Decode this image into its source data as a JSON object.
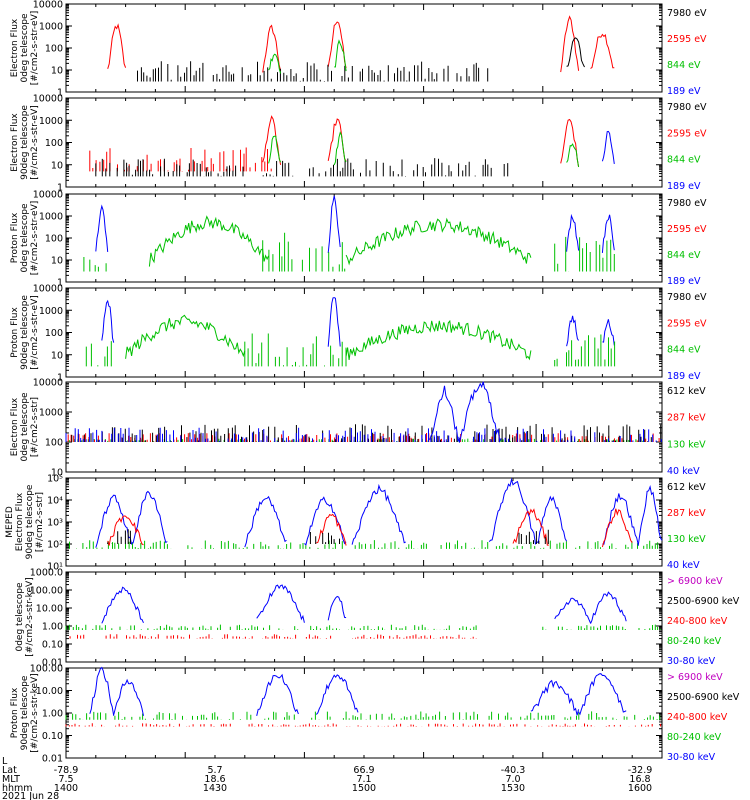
{
  "figure": {
    "date_label": "2021 Jun 28",
    "footer_rows": [
      {
        "label": "L",
        "values": [
          "",
          "",
          "",
          "",
          "",
          ""
        ]
      },
      {
        "label": "Lat",
        "values": [
          "-78.9",
          "5.7",
          "66.9",
          "-40.3",
          "-32.9",
          ""
        ]
      },
      {
        "label": "MLT",
        "values": [
          "7.5",
          "18.6",
          "7.1",
          "7.0",
          "16.8",
          ""
        ]
      },
      {
        "label": "hhmm",
        "values": [
          "1400",
          "1430",
          "1500",
          "1530",
          "1600",
          ""
        ]
      }
    ]
  },
  "chart_data": [
    {
      "type": "line",
      "name": "panel1",
      "ylabel_lines": [
        "Electron Flux",
        "0deg telescope",
        "[#/cm2-s-str-eV]"
      ],
      "yscale": "log",
      "ylim": [
        1,
        10000
      ],
      "ytick_labels": [
        "1",
        "10",
        "100",
        "1000",
        "10000"
      ],
      "legend": [
        {
          "name": "7980 eV",
          "color": "#000000"
        },
        {
          "name": "2595 eV",
          "color": "#ff0000"
        },
        {
          "name": "844 eV",
          "color": "#00c000"
        },
        {
          "name": "189 eV",
          "color": "#0000ff"
        }
      ],
      "bursts": [
        {
          "color": "#ff0000",
          "x0": 0.07,
          "x1": 0.1,
          "peak": 1000,
          "floor": 10
        },
        {
          "color": "#ff0000",
          "x0": 0.33,
          "x1": 0.36,
          "peak": 800,
          "floor": 10
        },
        {
          "color": "#ff0000",
          "x0": 0.44,
          "x1": 0.47,
          "peak": 2000,
          "floor": 10
        },
        {
          "color": "#ff0000",
          "x0": 0.83,
          "x1": 0.86,
          "peak": 2000,
          "floor": 10
        },
        {
          "color": "#ff0000",
          "x0": 0.88,
          "x1": 0.92,
          "peak": 500,
          "floor": 10
        },
        {
          "color": "#000000",
          "x0": 0.12,
          "x1": 0.71,
          "peak": 25,
          "floor": 3,
          "noise": true
        },
        {
          "color": "#00c000",
          "x0": 0.34,
          "x1": 0.36,
          "peak": 60,
          "floor": 10
        },
        {
          "color": "#00c000",
          "x0": 0.45,
          "x1": 0.47,
          "peak": 200,
          "floor": 10
        },
        {
          "color": "#000000",
          "x0": 0.84,
          "x1": 0.87,
          "peak": 300,
          "floor": 10
        }
      ]
    },
    {
      "type": "line",
      "name": "panel2",
      "ylabel_lines": [
        "Electron Flux",
        "90deg telescope",
        "[#/cm2-s-str-eV]"
      ],
      "yscale": "log",
      "ylim": [
        1,
        10000
      ],
      "ytick_labels": [
        "1",
        "10",
        "100",
        "1000",
        "10000"
      ],
      "legend": [
        {
          "name": "7980 eV",
          "color": "#000000"
        },
        {
          "name": "2595 eV",
          "color": "#ff0000"
        },
        {
          "name": "844 eV",
          "color": "#00c000"
        },
        {
          "name": "189 eV",
          "color": "#0000ff"
        }
      ],
      "bursts": [
        {
          "color": "#ff0000",
          "x0": 0.04,
          "x1": 0.35,
          "peak": 60,
          "floor": 5,
          "noise": true
        },
        {
          "color": "#ff0000",
          "x0": 0.33,
          "x1": 0.36,
          "peak": 1000,
          "floor": 10
        },
        {
          "color": "#ff0000",
          "x0": 0.44,
          "x1": 0.47,
          "peak": 1000,
          "floor": 10
        },
        {
          "color": "#000000",
          "x0": 0.05,
          "x1": 0.75,
          "peak": 20,
          "floor": 3,
          "noise": true
        },
        {
          "color": "#00c000",
          "x0": 0.34,
          "x1": 0.36,
          "peak": 200,
          "floor": 10
        },
        {
          "color": "#00c000",
          "x0": 0.45,
          "x1": 0.47,
          "peak": 200,
          "floor": 10
        },
        {
          "color": "#ff0000",
          "x0": 0.83,
          "x1": 0.86,
          "peak": 1000,
          "floor": 10
        },
        {
          "color": "#0000ff",
          "x0": 0.9,
          "x1": 0.92,
          "peak": 300,
          "floor": 10
        },
        {
          "color": "#00c000",
          "x0": 0.84,
          "x1": 0.86,
          "peak": 100,
          "floor": 10
        }
      ]
    },
    {
      "type": "line",
      "name": "panel3",
      "ylabel_lines": [
        "Proton Flux",
        "0deg telescope",
        "[#/cm2-s-str-eV]"
      ],
      "yscale": "log",
      "ylim": [
        1,
        10000
      ],
      "ytick_labels": [
        "1",
        "10",
        "100",
        "1000",
        "10000"
      ],
      "legend": [
        {
          "name": "7980 eV",
          "color": "#000000"
        },
        {
          "name": "2595 eV",
          "color": "#ff0000"
        },
        {
          "name": "844 eV",
          "color": "#00c000"
        },
        {
          "name": "189 eV",
          "color": "#0000ff"
        }
      ],
      "bursts": [
        {
          "color": "#00c000",
          "x0": 0.14,
          "x1": 0.34,
          "peak": 500,
          "floor": 10,
          "arc": true
        },
        {
          "color": "#00c000",
          "x0": 0.47,
          "x1": 0.78,
          "peak": 400,
          "floor": 10,
          "arc": true
        },
        {
          "color": "#0000ff",
          "x0": 0.05,
          "x1": 0.07,
          "peak": 2000,
          "floor": 30
        },
        {
          "color": "#0000ff",
          "x0": 0.44,
          "x1": 0.46,
          "peak": 8000,
          "floor": 30
        },
        {
          "color": "#0000ff",
          "x0": 0.84,
          "x1": 0.86,
          "peak": 1000,
          "floor": 30
        },
        {
          "color": "#0000ff",
          "x0": 0.9,
          "x1": 0.92,
          "peak": 1000,
          "floor": 30
        },
        {
          "color": "#00c000",
          "x0": 0.03,
          "x1": 0.07,
          "peak": 100,
          "floor": 3,
          "noise": true
        },
        {
          "color": "#00c000",
          "x0": 0.33,
          "x1": 0.47,
          "peak": 200,
          "floor": 3,
          "noise": true
        },
        {
          "color": "#00c000",
          "x0": 0.82,
          "x1": 0.93,
          "peak": 200,
          "floor": 3,
          "noise": true
        }
      ]
    },
    {
      "type": "line",
      "name": "panel4",
      "ylabel_lines": [
        "Proton Flux",
        "90deg telescope",
        "[#/cm2-s-str-eV]"
      ],
      "yscale": "log",
      "ylim": [
        1,
        10000
      ],
      "ytick_labels": [
        "1",
        "10",
        "100",
        "1000",
        "10000"
      ],
      "legend": [
        {
          "name": "7980 eV",
          "color": "#000000"
        },
        {
          "name": "2595 eV",
          "color": "#ff0000"
        },
        {
          "name": "844 eV",
          "color": "#00c000"
        },
        {
          "name": "189 eV",
          "color": "#0000ff"
        }
      ],
      "bursts": [
        {
          "color": "#00c000",
          "x0": 0.1,
          "x1": 0.3,
          "peak": 300,
          "floor": 10,
          "arc": true
        },
        {
          "color": "#00c000",
          "x0": 0.47,
          "x1": 0.78,
          "peak": 200,
          "floor": 10,
          "arc": true
        },
        {
          "color": "#0000ff",
          "x0": 0.06,
          "x1": 0.08,
          "peak": 3000,
          "floor": 30
        },
        {
          "color": "#0000ff",
          "x0": 0.44,
          "x1": 0.46,
          "peak": 5000,
          "floor": 30
        },
        {
          "color": "#0000ff",
          "x0": 0.84,
          "x1": 0.86,
          "peak": 500,
          "floor": 30
        },
        {
          "color": "#0000ff",
          "x0": 0.9,
          "x1": 0.92,
          "peak": 300,
          "floor": 30
        },
        {
          "color": "#00c000",
          "x0": 0.03,
          "x1": 0.08,
          "peak": 50,
          "floor": 3,
          "noise": true
        },
        {
          "color": "#00c000",
          "x0": 0.3,
          "x1": 0.47,
          "peak": 100,
          "floor": 3,
          "noise": true
        },
        {
          "color": "#00c000",
          "x0": 0.82,
          "x1": 0.93,
          "peak": 100,
          "floor": 3,
          "noise": true
        }
      ]
    },
    {
      "type": "line",
      "name": "panel5",
      "ylabel_lines": [
        "Electron Flux",
        "0deg telescope",
        "[#/cm2-s-str]"
      ],
      "yscale": "log",
      "ylim": [
        10,
        10000
      ],
      "ytick_labels": [
        "10",
        "100",
        "1000",
        "10000"
      ],
      "legend": [
        {
          "name": "612 keV",
          "color": "#000000"
        },
        {
          "name": "287 keV",
          "color": "#ff0000"
        },
        {
          "name": "130 keV",
          "color": "#00c000"
        },
        {
          "name": "40 keV",
          "color": "#0000ff"
        }
      ],
      "bursts": [
        {
          "color": "#00c000",
          "x0": 0.0,
          "x1": 1.0,
          "peak": 130,
          "floor": 100,
          "noise": true
        },
        {
          "color": "#ff0000",
          "x0": 0.0,
          "x1": 1.0,
          "peak": 200,
          "floor": 100,
          "noise": true
        },
        {
          "color": "#000000",
          "x0": 0.0,
          "x1": 1.0,
          "peak": 400,
          "floor": 100,
          "noise": true
        },
        {
          "color": "#0000ff",
          "x0": 0.0,
          "x1": 1.0,
          "peak": 300,
          "floor": 100,
          "noise": true
        },
        {
          "color": "#0000ff",
          "x0": 0.61,
          "x1": 0.66,
          "peak": 5000,
          "floor": 100
        },
        {
          "color": "#0000ff",
          "x0": 0.66,
          "x1": 0.73,
          "peak": 8000,
          "floor": 100
        }
      ]
    },
    {
      "type": "line",
      "name": "panel6",
      "ylabel_lines": [
        "MEPED",
        "Electron Flux",
        "90deg telescope",
        "[#/cm2-s-str]"
      ],
      "yscale": "log",
      "ylim": [
        10,
        100000
      ],
      "ytick_labels": [
        "10¹",
        "10²",
        "10³",
        "10⁴",
        "10⁵"
      ],
      "legend": [
        {
          "name": "612 keV",
          "color": "#000000"
        },
        {
          "name": "287 keV",
          "color": "#ff0000"
        },
        {
          "name": "130 keV",
          "color": "#00c000"
        },
        {
          "name": "40 keV",
          "color": "#0000ff"
        }
      ],
      "bursts": [
        {
          "color": "#00c000",
          "x0": 0.0,
          "x1": 1.0,
          "peak": 150,
          "floor": 60,
          "noise": true
        },
        {
          "color": "#0000ff",
          "x0": 0.05,
          "x1": 0.11,
          "peak": 12000,
          "floor": 100
        },
        {
          "color": "#0000ff",
          "x0": 0.11,
          "x1": 0.17,
          "peak": 20000,
          "floor": 100
        },
        {
          "color": "#0000ff",
          "x0": 0.3,
          "x1": 0.37,
          "peak": 12000,
          "floor": 100
        },
        {
          "color": "#0000ff",
          "x0": 0.4,
          "x1": 0.47,
          "peak": 10000,
          "floor": 100
        },
        {
          "color": "#0000ff",
          "x0": 0.48,
          "x1": 0.57,
          "peak": 30000,
          "floor": 100
        },
        {
          "color": "#0000ff",
          "x0": 0.71,
          "x1": 0.79,
          "peak": 70000,
          "floor": 100
        },
        {
          "color": "#0000ff",
          "x0": 0.79,
          "x1": 0.84,
          "peak": 12000,
          "floor": 100
        },
        {
          "color": "#0000ff",
          "x0": 0.9,
          "x1": 0.96,
          "peak": 15000,
          "floor": 100
        },
        {
          "color": "#0000ff",
          "x0": 0.96,
          "x1": 1.0,
          "peak": 30000,
          "floor": 100
        },
        {
          "color": "#ff0000",
          "x0": 0.07,
          "x1": 0.13,
          "peak": 2000,
          "floor": 100
        },
        {
          "color": "#ff0000",
          "x0": 0.42,
          "x1": 0.47,
          "peak": 2000,
          "floor": 100
        },
        {
          "color": "#ff0000",
          "x0": 0.75,
          "x1": 0.81,
          "peak": 3000,
          "floor": 100
        },
        {
          "color": "#ff0000",
          "x0": 0.9,
          "x1": 0.95,
          "peak": 3000,
          "floor": 100
        },
        {
          "color": "#000000",
          "x0": 0.07,
          "x1": 0.12,
          "peak": 500,
          "floor": 100,
          "noise": true
        },
        {
          "color": "#000000",
          "x0": 0.41,
          "x1": 0.47,
          "peak": 500,
          "floor": 100,
          "noise": true
        },
        {
          "color": "#000000",
          "x0": 0.76,
          "x1": 0.82,
          "peak": 500,
          "floor": 100,
          "noise": true
        }
      ]
    },
    {
      "type": "line",
      "name": "panel7",
      "ylabel_lines": [
        "0deg telescope",
        "[#/cm2-s-str-keV]"
      ],
      "yscale": "log",
      "ylim": [
        0.01,
        1000
      ],
      "ytick_labels": [
        "0.01",
        "0.10",
        "1.00",
        "10.00",
        "100.00",
        "1000.0"
      ],
      "legend": [
        {
          "name": "> 6900 keV",
          "color": "#c000c0"
        },
        {
          "name": "2500-6900 keV",
          "color": "#000000"
        },
        {
          "name": "240-800 keV",
          "color": "#ff0000"
        },
        {
          "name": "80-240 keV",
          "color": "#00c000"
        },
        {
          "name": "30-80 keV",
          "color": "#0000ff"
        }
      ],
      "bursts": [
        {
          "color": "#00c000",
          "x0": 0.0,
          "x1": 0.7,
          "peak": 1.2,
          "floor": 0.6,
          "noise": true
        },
        {
          "color": "#00c000",
          "x0": 0.8,
          "x1": 1.0,
          "peak": 1.2,
          "floor": 0.6,
          "noise": true
        },
        {
          "color": "#ff0000",
          "x0": 0.0,
          "x1": 0.7,
          "peak": 0.35,
          "floor": 0.2,
          "noise": true
        },
        {
          "color": "#0000ff",
          "x0": 0.06,
          "x1": 0.13,
          "peak": 100,
          "floor": 2
        },
        {
          "color": "#0000ff",
          "x0": 0.32,
          "x1": 0.4,
          "peak": 150,
          "floor": 2
        },
        {
          "color": "#0000ff",
          "x0": 0.44,
          "x1": 0.47,
          "peak": 60,
          "floor": 2
        },
        {
          "color": "#0000ff",
          "x0": 0.82,
          "x1": 0.88,
          "peak": 30,
          "floor": 2
        },
        {
          "color": "#0000ff",
          "x0": 0.88,
          "x1": 0.94,
          "peak": 60,
          "floor": 2
        }
      ]
    },
    {
      "type": "line",
      "name": "panel8",
      "ylabel_lines": [
        "Proton Flux",
        "90deg telescope",
        "[#/cm2-s-str-keV]"
      ],
      "yscale": "log",
      "ylim": [
        0.01,
        100
      ],
      "ytick_labels": [
        "0.01",
        "0.10",
        "1.00",
        "10.00",
        "100.00"
      ],
      "legend": [
        {
          "name": "> 6900 keV",
          "color": "#c000c0"
        },
        {
          "name": "2500-6900 keV",
          "color": "#000000"
        },
        {
          "name": "240-800 keV",
          "color": "#ff0000"
        },
        {
          "name": "80-240 keV",
          "color": "#00c000"
        },
        {
          "name": "30-80 keV",
          "color": "#0000ff"
        }
      ],
      "bursts": [
        {
          "color": "#00c000",
          "x0": 0.0,
          "x1": 1.0,
          "peak": 1.2,
          "floor": 0.5,
          "noise": true
        },
        {
          "color": "#ff0000",
          "x0": 0.0,
          "x1": 1.0,
          "peak": 0.35,
          "floor": 0.25,
          "noise": true
        },
        {
          "color": "#0000ff",
          "x0": 0.04,
          "x1": 0.08,
          "peak": 80,
          "floor": 1
        },
        {
          "color": "#0000ff",
          "x0": 0.08,
          "x1": 0.13,
          "peak": 30,
          "floor": 1
        },
        {
          "color": "#0000ff",
          "x0": 0.32,
          "x1": 0.39,
          "peak": 50,
          "floor": 1
        },
        {
          "color": "#0000ff",
          "x0": 0.42,
          "x1": 0.49,
          "peak": 50,
          "floor": 1
        },
        {
          "color": "#0000ff",
          "x0": 0.78,
          "x1": 0.86,
          "peak": 20,
          "floor": 1
        },
        {
          "color": "#0000ff",
          "x0": 0.86,
          "x1": 0.94,
          "peak": 50,
          "floor": 1
        }
      ]
    }
  ]
}
